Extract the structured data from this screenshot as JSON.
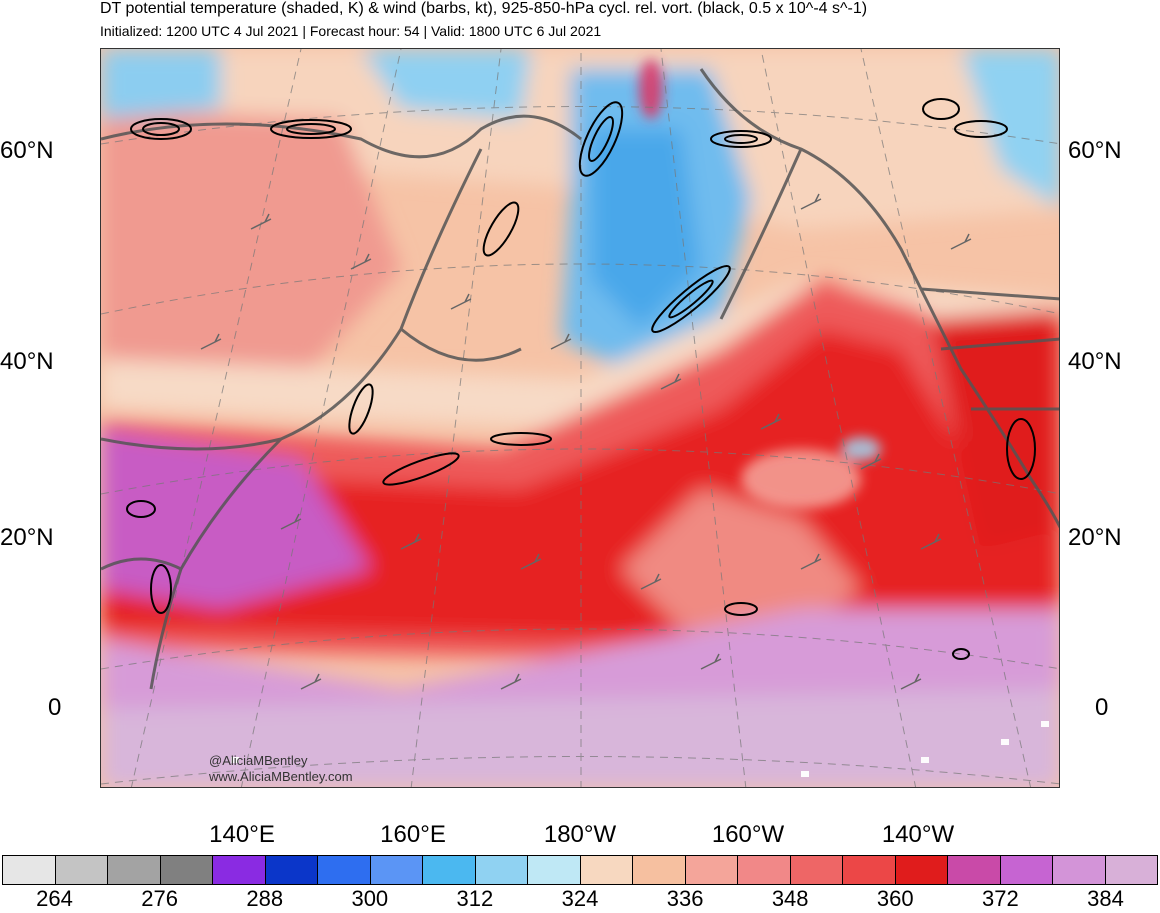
{
  "header": {
    "title": "DT potential temperature (shaded, K) & wind (barbs, kt), 925-850-hPa cycl. rel. vort. (black, 0.5 x 10^-4 s^-1)",
    "subtitle": "Initialized: 1200 UTC 4 Jul 2021 | Forecast hour: 54 | Valid: 1800 UTC 6 Jul 2021"
  },
  "map": {
    "lat_labels": [
      "60°N",
      "40°N",
      "20°N",
      "0"
    ],
    "lon_labels": [
      "140°E",
      "160°E",
      "180°W",
      "160°W",
      "140°W"
    ],
    "credits": [
      "@AliciaMBentley",
      "www.AliciaMBentley.com"
    ]
  },
  "colorbar": {
    "tick_labels": [
      "264",
      "276",
      "288",
      "300",
      "312",
      "324",
      "336",
      "348",
      "360",
      "372",
      "384"
    ],
    "colors": [
      "#e6e6e6",
      "#c4c4c4",
      "#a3a3a3",
      "#808080",
      "#8a2be2",
      "#0b36c9",
      "#2e6ef0",
      "#5b95f5",
      "#4bb8f0",
      "#90d2f2",
      "#bfe8f5",
      "#f7d8c0",
      "#f6c0a0",
      "#f4a59a",
      "#f18888",
      "#ee6666",
      "#ec4747",
      "#e01c1c",
      "#c94aa8",
      "#c664d2",
      "#d394d8",
      "#d8b0d8"
    ]
  }
}
